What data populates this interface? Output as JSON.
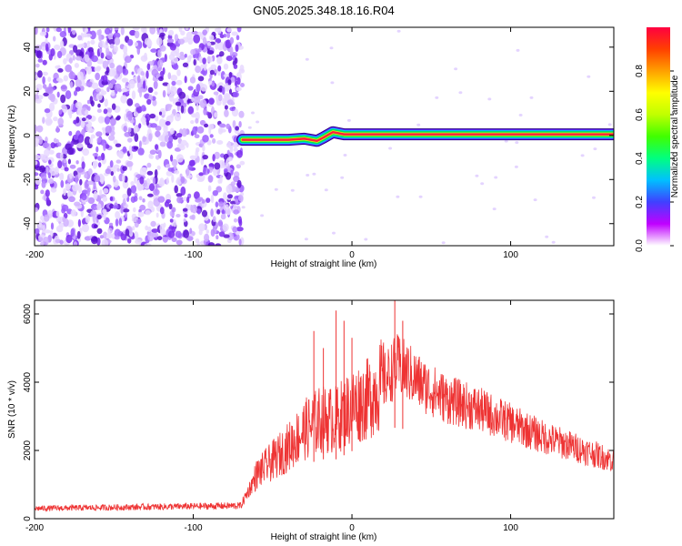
{
  "title": "GN05.2025.348.18.16.R04",
  "chart_data": [
    {
      "type": "heatmap",
      "title": "GN05.2025.348.18.16.R04",
      "xlabel": "Height of straight line (km)",
      "ylabel": "Frequency (Hz)",
      "xlim": [
        -200,
        165
      ],
      "ylim": [
        -50,
        49
      ],
      "xticks": [
        -200,
        -100,
        0,
        100
      ],
      "yticks": [
        -40,
        -20,
        0,
        20,
        40
      ],
      "noise_region_x": [
        -200,
        -69
      ],
      "signal": {
        "x_start": -69,
        "x_end": 165,
        "frequency_track": [
          {
            "x": -69,
            "y": -2
          },
          {
            "x": -40,
            "y": -2
          },
          {
            "x": -30,
            "y": -1.5
          },
          {
            "x": -22,
            "y": -2.5
          },
          {
            "x": -18,
            "y": -1
          },
          {
            "x": -12,
            "y": 1.5
          },
          {
            "x": -5,
            "y": 0.5
          },
          {
            "x": 0,
            "y": 0.5
          },
          {
            "x": 95,
            "y": 0.5
          },
          {
            "x": 165,
            "y": 0.5
          }
        ]
      },
      "colorbar": {
        "label": "Normalized spectral amplitude",
        "range": [
          0,
          1
        ],
        "ticks": [
          0.0,
          0.2,
          0.4,
          0.6,
          0.8
        ],
        "colors": [
          "#ffffff",
          "#c000ff",
          "#4040ff",
          "#00c0ff",
          "#00ff80",
          "#40ff00",
          "#c0ff00",
          "#ffff00",
          "#ffa000",
          "#ff4000",
          "#ff0040"
        ]
      },
      "grid": false
    },
    {
      "type": "line",
      "xlabel": "Height of straight line (km)",
      "ylabel": "SNR (10 * v/v)",
      "xlim": [
        -200,
        165
      ],
      "ylim": [
        0,
        6400
      ],
      "xticks": [
        -200,
        -100,
        0,
        100
      ],
      "yticks": [
        0,
        2000,
        4000,
        6000
      ],
      "color": "#ee3333",
      "grid": false,
      "envelope": {
        "x": [
          -200,
          -120,
          -70,
          -60,
          -50,
          -40,
          -30,
          -20,
          -10,
          0,
          10,
          20,
          28,
          35,
          45,
          60,
          80,
          100,
          120,
          140,
          165
        ],
        "y": [
          300,
          350,
          380,
          1300,
          1700,
          2100,
          2600,
          2900,
          2900,
          3300,
          3500,
          4000,
          4500,
          4300,
          3900,
          3500,
          3200,
          2800,
          2400,
          2100,
          1700
        ]
      },
      "spikes": [
        {
          "x": -24,
          "y": 5500
        },
        {
          "x": -18,
          "y": 5000
        },
        {
          "x": -10,
          "y": 6100
        },
        {
          "x": -5,
          "y": 5800
        },
        {
          "x": 0,
          "y": 5300
        },
        {
          "x": 27,
          "y": 6400
        },
        {
          "x": 32,
          "y": 5800
        }
      ]
    }
  ]
}
